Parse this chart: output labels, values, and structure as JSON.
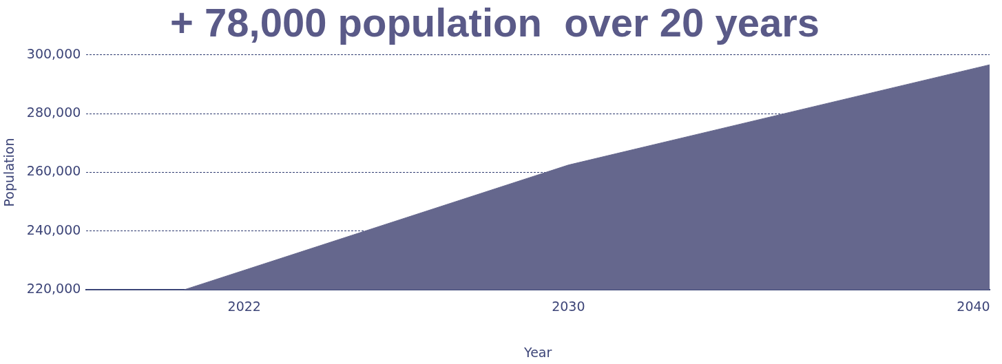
{
  "chart_data": {
    "type": "area",
    "title": "+ 78,000 population  over 20 years",
    "xlabel": "Year",
    "ylabel": "Population",
    "x": [
      2018.1,
      2020.5,
      2030,
      2040.4
    ],
    "series": [
      {
        "color": "#65678d",
        "values": [
          220000,
          220000,
          262500,
          296600
        ]
      }
    ],
    "xlim": [
      2018.1,
      2040.4
    ],
    "xticks": [
      2022,
      2030,
      2040
    ],
    "ylim": [
      220000,
      300000
    ],
    "yticks": [
      {
        "value": 220000,
        "label": "220,000"
      },
      {
        "value": 240000,
        "label": "240,000"
      },
      {
        "value": 260000,
        "label": "260,000"
      },
      {
        "value": 280000,
        "label": "280,000"
      },
      {
        "value": 300000,
        "label": "300,000"
      }
    ],
    "grid": "y",
    "legend": false,
    "marker": "none"
  }
}
